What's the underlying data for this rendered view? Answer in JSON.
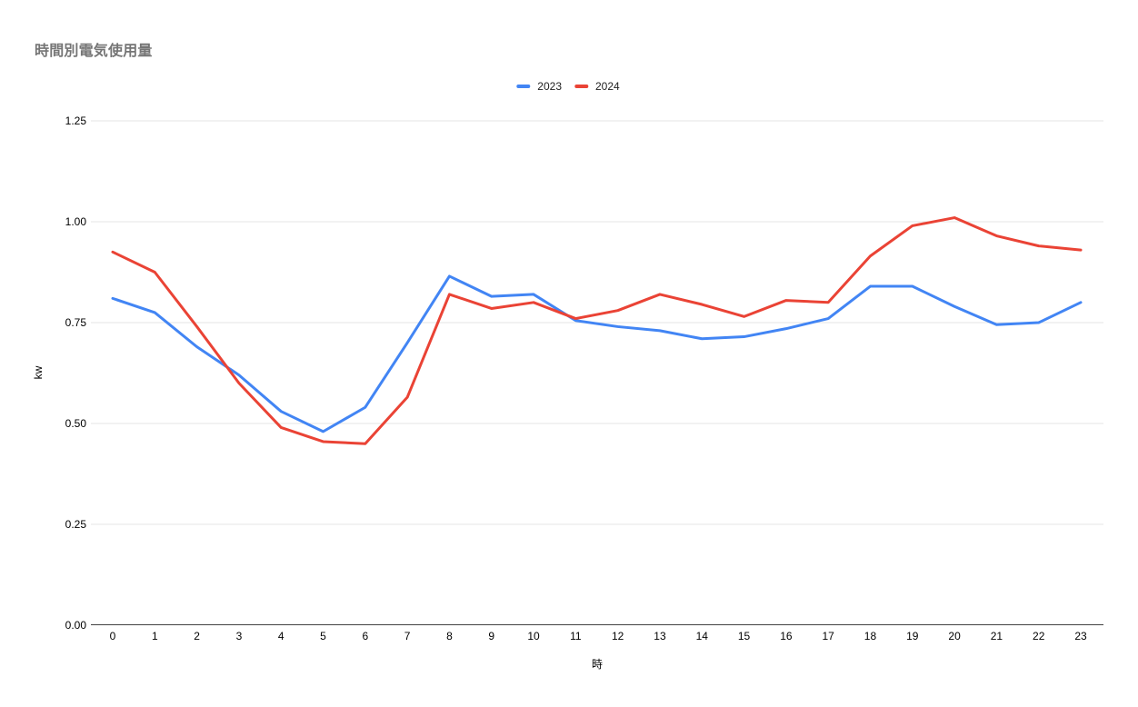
{
  "chart_data": {
    "type": "line",
    "title": "時間別電気使用量",
    "xlabel": "時",
    "ylabel": "kw",
    "categories": [
      "0",
      "1",
      "2",
      "3",
      "4",
      "5",
      "6",
      "7",
      "8",
      "9",
      "10",
      "11",
      "12",
      "13",
      "14",
      "15",
      "16",
      "17",
      "18",
      "19",
      "20",
      "21",
      "22",
      "23"
    ],
    "series": [
      {
        "name": "2023",
        "color": "#4285F4",
        "values": [
          0.81,
          0.775,
          0.69,
          0.62,
          0.53,
          0.48,
          0.54,
          0.7,
          0.865,
          0.815,
          0.82,
          0.755,
          0.74,
          0.73,
          0.71,
          0.715,
          0.735,
          0.76,
          0.84,
          0.84,
          0.79,
          0.745,
          0.75,
          0.8
        ]
      },
      {
        "name": "2024",
        "color": "#EA4335",
        "values": [
          0.925,
          0.875,
          0.74,
          0.6,
          0.49,
          0.455,
          0.45,
          0.565,
          0.82,
          0.785,
          0.8,
          0.76,
          0.78,
          0.82,
          0.795,
          0.765,
          0.805,
          0.8,
          0.915,
          0.99,
          1.01,
          0.965,
          0.94,
          0.93
        ]
      }
    ],
    "ylim": [
      0,
      1.25
    ],
    "ytick_step": 0.25,
    "ytick_labels": [
      "0.00",
      "0.25",
      "0.50",
      "0.75",
      "1.00",
      "1.25"
    ],
    "grid": true,
    "legend_position": "top",
    "colors": {
      "title_text": "#757575",
      "axis_text": "#000000",
      "gridline": "#e6e6e6",
      "axis_line": "#424242",
      "background": "#ffffff"
    }
  }
}
